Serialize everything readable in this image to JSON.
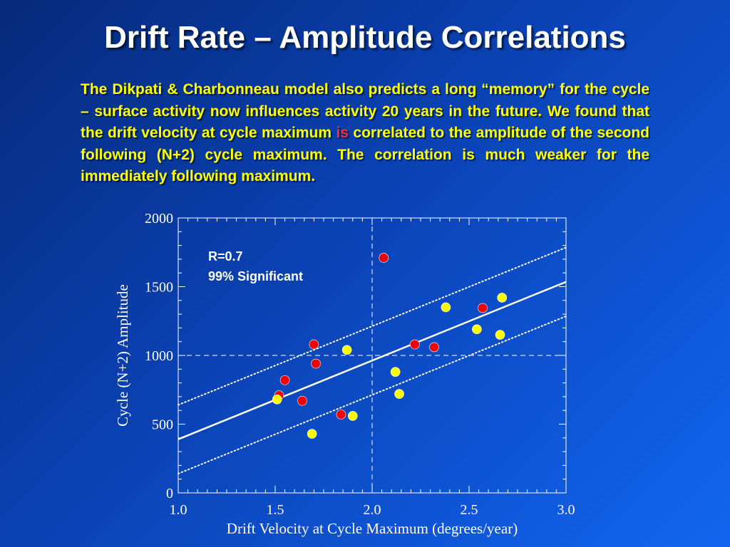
{
  "slide": {
    "title": "Drift Rate – Amplitude Correlations",
    "para_before": "The Dikpati & Charbonneau model also predicts a long “memory” for the cycle – surface activity now influences activity 20 years in the future. We found that the drift velocity at cycle maximum ",
    "para_highlight": "is",
    "para_after": " correlated to the amplitude of the second following (N+2) cycle maximum. The correlation is much weaker for the immediately following maximum.",
    "highlight_color": "#ff2a2a",
    "text_color": "#ffff00"
  },
  "chart_data": {
    "type": "scatter",
    "title": "",
    "xlabel": "Drift Velocity at Cycle Maximum (degrees/year)",
    "ylabel": "Cycle (N+2) Amplitude",
    "xlim": [
      1.0,
      3.0
    ],
    "ylim": [
      0,
      2000
    ],
    "xticks": [
      "1.0",
      "1.5",
      "2.0",
      "2.5",
      "3.0"
    ],
    "yticks": [
      "0",
      "500",
      "1000",
      "1500",
      "2000"
    ],
    "reference_lines": {
      "x": 2.0,
      "y": 1000
    },
    "annotation": [
      "R=0.7",
      "99% Significant"
    ],
    "fit_line": {
      "x": [
        1.0,
        3.0
      ],
      "y": [
        390,
        1535
      ]
    },
    "confidence_band_upper": {
      "x": [
        1.0,
        3.0
      ],
      "y": [
        640,
        1785
      ]
    },
    "confidence_band_lower": {
      "x": [
        1.0,
        3.0
      ],
      "y": [
        140,
        1285
      ]
    },
    "series": [
      {
        "color": "#ee0000",
        "x": [
          1.52,
          1.55,
          1.64,
          1.7,
          1.71,
          1.84,
          2.06,
          2.22,
          2.32,
          2.57
        ],
        "y": [
          710,
          820,
          670,
          1080,
          940,
          570,
          1710,
          1080,
          1060,
          1345
        ]
      },
      {
        "color": "#ffff00",
        "x": [
          1.51,
          1.69,
          1.87,
          1.9,
          2.12,
          2.14,
          2.38,
          2.54,
          2.66,
          2.67
        ],
        "y": [
          680,
          430,
          1040,
          560,
          880,
          720,
          1350,
          1190,
          1150,
          1420
        ]
      }
    ]
  }
}
